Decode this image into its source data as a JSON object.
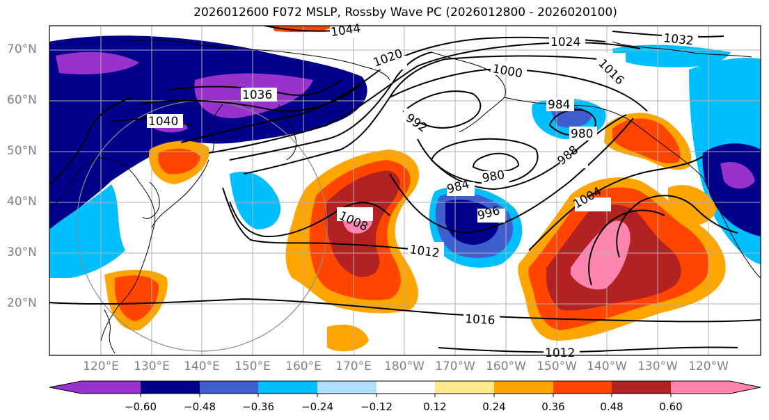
{
  "title": "2026012600 F072 MSLP, Rossby Wave PC (2026012800 - 2026020100)",
  "lat_labels": [
    "70°N",
    "60°N",
    "50°N",
    "40°N",
    "30°N",
    "20°N"
  ],
  "lon_labels": [
    "120°E",
    "130°E",
    "140°E",
    "150°E",
    "160°E",
    "170°E",
    "180°W",
    "170°W",
    "160°W",
    "150°W",
    "140°W",
    "130°W",
    "120°W"
  ],
  "isobar_labels": [
    "1044",
    "1024",
    "1032",
    "1016",
    "1020",
    "1000",
    "1036",
    "992",
    "984",
    "980",
    "1040",
    "988",
    "980",
    "984",
    "996",
    "1004",
    "1008",
    "1012",
    "1016",
    "1012"
  ],
  "colorbar": {
    "ticks": [
      "−0.60",
      "−0.48",
      "−0.36",
      "−0.24",
      "−0.12",
      "0.12",
      "0.24",
      "0.36",
      "0.48",
      "0.60"
    ],
    "colors": [
      "#9932cc",
      "#00008b",
      "#3f5fcf",
      "#00bfff",
      "#b0e0ff",
      "#ffffff",
      "#ffe98a",
      "#ffa500",
      "#ff4500",
      "#b22222",
      "#ff85b0"
    ]
  },
  "colors": {
    "coast": "#000000",
    "isobar": "#000000",
    "grid": "#b0b0b0",
    "circle": "#8c8c8c"
  }
}
